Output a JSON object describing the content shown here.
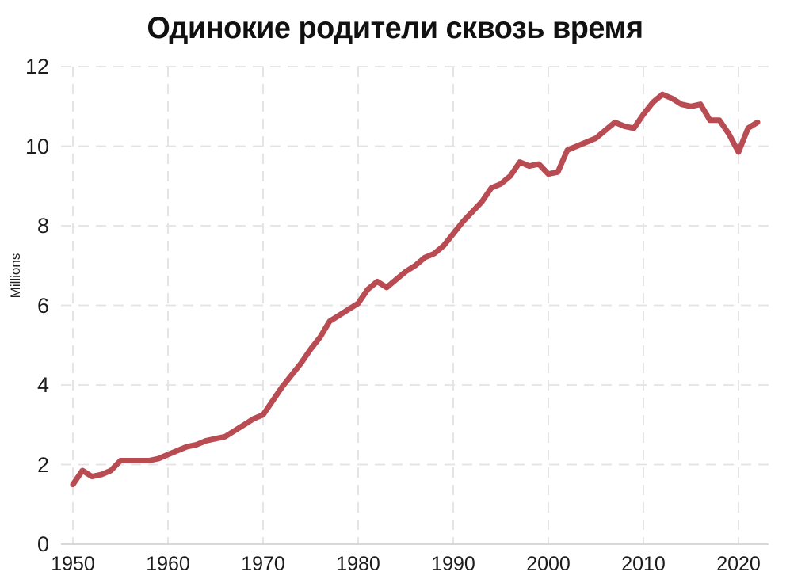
{
  "page": {
    "background": "#ffffff"
  },
  "title": "Одинокие родители сквозь время",
  "chart_data": {
    "type": "line",
    "title": "Одинокие родители сквозь время",
    "xlabel": "",
    "ylabel": "Millions",
    "xlim": [
      1950,
      2023
    ],
    "ylim": [
      0,
      12
    ],
    "x_ticks": [
      1950,
      1960,
      1970,
      1980,
      1990,
      2000,
      2010,
      2020
    ],
    "y_ticks": [
      0,
      2,
      4,
      6,
      8,
      10,
      12
    ],
    "grid": "dashed",
    "legend_position": "none",
    "colors": {
      "line": "#b94b52",
      "grid": "#e4e2e2",
      "axis": "#d8d8d8",
      "tick_text": "#1c1c1c",
      "title_text": "#111111"
    },
    "series": [
      {
        "name": "Одинокие родители",
        "color": "#b94b52",
        "x": [
          1950,
          1951,
          1952,
          1953,
          1954,
          1955,
          1956,
          1957,
          1958,
          1959,
          1960,
          1961,
          1962,
          1963,
          1964,
          1965,
          1966,
          1967,
          1968,
          1969,
          1970,
          1971,
          1972,
          1973,
          1974,
          1975,
          1976,
          1977,
          1978,
          1979,
          1980,
          1981,
          1982,
          1983,
          1984,
          1985,
          1986,
          1987,
          1988,
          1989,
          1990,
          1991,
          1992,
          1993,
          1994,
          1995,
          1996,
          1997,
          1998,
          1999,
          2000,
          2001,
          2002,
          2003,
          2004,
          2005,
          2006,
          2007,
          2008,
          2009,
          2010,
          2011,
          2012,
          2013,
          2014,
          2015,
          2016,
          2017,
          2018,
          2019,
          2020,
          2021,
          2022
        ],
        "values": [
          1.5,
          1.85,
          1.7,
          1.75,
          1.85,
          2.1,
          2.1,
          2.1,
          2.1,
          2.15,
          2.25,
          2.35,
          2.45,
          2.5,
          2.6,
          2.65,
          2.7,
          2.85,
          3.0,
          3.15,
          3.25,
          3.6,
          3.95,
          4.25,
          4.55,
          4.9,
          5.2,
          5.6,
          5.75,
          5.9,
          6.05,
          6.4,
          6.6,
          6.45,
          6.65,
          6.85,
          7.0,
          7.2,
          7.3,
          7.5,
          7.8,
          8.1,
          8.35,
          8.6,
          8.95,
          9.05,
          9.25,
          9.6,
          9.5,
          9.55,
          9.3,
          9.35,
          9.9,
          10.0,
          10.1,
          10.2,
          10.4,
          10.6,
          10.5,
          10.45,
          10.8,
          11.1,
          11.3,
          11.2,
          11.05,
          11.0,
          11.05,
          10.65,
          10.65,
          10.3,
          9.85,
          10.45,
          10.6
        ]
      }
    ]
  }
}
